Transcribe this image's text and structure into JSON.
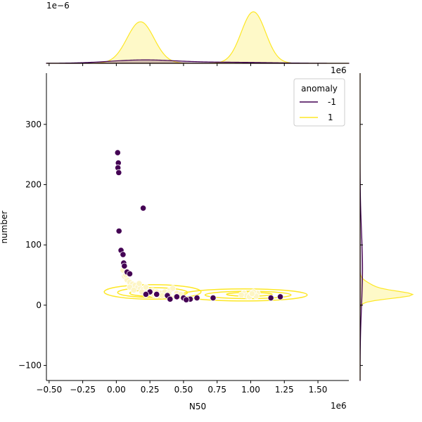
{
  "chart_data": {
    "type": "scatter",
    "title": "",
    "xlabel": "N50",
    "ylabel": "number",
    "x_offset_label": "1e6",
    "top_offset_label": "1e−6",
    "top_right_offset_label": "1e6",
    "xlim": [
      -0.52,
      1.73
    ],
    "ylim": [
      -125,
      385
    ],
    "xticks": [
      -0.5,
      -0.25,
      0.0,
      0.25,
      0.5,
      0.75,
      1.0,
      1.25,
      1.5
    ],
    "xtick_labels": [
      "−0.50",
      "−0.25",
      "0.00",
      "0.25",
      "0.50",
      "0.75",
      "1.00",
      "1.25",
      "1.50"
    ],
    "yticks": [
      -100,
      0,
      100,
      200,
      300
    ],
    "ytick_labels": [
      "−100",
      "0",
      "100",
      "200",
      "300"
    ],
    "grid": false,
    "legend": {
      "title": "anomaly",
      "placement": "top-right",
      "entries": [
        {
          "label": "-1",
          "color": "#440154"
        },
        {
          "label": "1",
          "color": "#fde725"
        }
      ]
    },
    "colors": {
      "anomaly": "#440154",
      "normal": "#fde725",
      "normal_fill": "#fdf5c4",
      "normal_edge": "#ffffff"
    },
    "series": [
      {
        "name": "-1",
        "points": [
          [
            0.01,
            253
          ],
          [
            0.015,
            236
          ],
          [
            0.012,
            228
          ],
          [
            0.018,
            220
          ],
          [
            0.02,
            123
          ],
          [
            0.2,
            161
          ],
          [
            0.035,
            91
          ],
          [
            0.05,
            84
          ],
          [
            0.055,
            70
          ],
          [
            0.06,
            65
          ],
          [
            0.08,
            55
          ],
          [
            0.1,
            52
          ],
          [
            0.25,
            22
          ],
          [
            0.3,
            18
          ],
          [
            0.38,
            16
          ],
          [
            0.4,
            10
          ],
          [
            0.45,
            14
          ],
          [
            0.5,
            12
          ],
          [
            0.55,
            10
          ],
          [
            0.6,
            12
          ],
          [
            0.72,
            12
          ],
          [
            1.15,
            12
          ],
          [
            1.22,
            14
          ],
          [
            0.22,
            18
          ],
          [
            0.52,
            9
          ]
        ]
      },
      {
        "name": "1",
        "points": [
          [
            0.06,
            48
          ],
          [
            0.08,
            42
          ],
          [
            0.1,
            38
          ],
          [
            0.12,
            35
          ],
          [
            0.14,
            33
          ],
          [
            0.16,
            30
          ],
          [
            0.18,
            28
          ],
          [
            0.2,
            26
          ],
          [
            0.22,
            24
          ],
          [
            0.24,
            22
          ],
          [
            0.26,
            20
          ],
          [
            0.28,
            18
          ],
          [
            0.3,
            17
          ],
          [
            0.33,
            20
          ],
          [
            0.36,
            22
          ],
          [
            0.4,
            25
          ],
          [
            0.42,
            28
          ],
          [
            0.45,
            20
          ],
          [
            0.48,
            18
          ],
          [
            0.1,
            30
          ],
          [
            0.13,
            25
          ],
          [
            0.17,
            36
          ],
          [
            0.22,
            30
          ],
          [
            0.27,
            24
          ],
          [
            0.3,
            22
          ],
          [
            0.95,
            20
          ],
          [
            1.0,
            18
          ],
          [
            1.05,
            20
          ],
          [
            0.97,
            16
          ],
          [
            1.02,
            22
          ],
          [
            0.99,
            14
          ],
          [
            1.04,
            15
          ],
          [
            0.93,
            17
          ],
          [
            1.01,
            19
          ],
          [
            0.05,
            58
          ],
          [
            0.07,
            50
          ],
          [
            0.19,
            22
          ],
          [
            0.34,
            16
          ],
          [
            0.39,
            19
          ],
          [
            0.44,
            14
          ]
        ]
      }
    ],
    "kde_contours": [
      {
        "cx": 0.27,
        "cy": 22,
        "rx": 0.36,
        "ry": 12
      },
      {
        "cx": 0.27,
        "cy": 21,
        "rx": 0.26,
        "ry": 8
      },
      {
        "cx": 0.24,
        "cy": 20,
        "rx": 0.14,
        "ry": 5
      },
      {
        "cx": 0.95,
        "cy": 17,
        "rx": 0.47,
        "ry": 10
      },
      {
        "cx": 0.98,
        "cy": 17,
        "rx": 0.32,
        "ry": 6
      },
      {
        "cx": 0.99,
        "cy": 18,
        "rx": 0.17,
        "ry": 3
      }
    ],
    "top_marginal": {
      "ylim": [
        0,
        1.65
      ],
      "normal_peaks": [
        {
          "mu": 0.18,
          "sigma": 0.1,
          "amp": 1.25
        },
        {
          "mu": 1.02,
          "sigma": 0.09,
          "amp": 1.55
        }
      ],
      "anomaly_peaks": [
        {
          "mu": 0.2,
          "sigma": 0.25,
          "amp": 0.1
        },
        {
          "mu": 0.85,
          "sigma": 0.3,
          "amp": 0.03
        }
      ]
    },
    "right_marginal": {
      "normal_peaks": [
        {
          "mu": 17,
          "sigma": 6,
          "amp": 1.0
        },
        {
          "mu": 30,
          "sigma": 8,
          "amp": 0.25
        }
      ],
      "anomaly_peaks": [
        {
          "mu": 60,
          "sigma": 60,
          "amp": 0.05
        }
      ]
    }
  }
}
